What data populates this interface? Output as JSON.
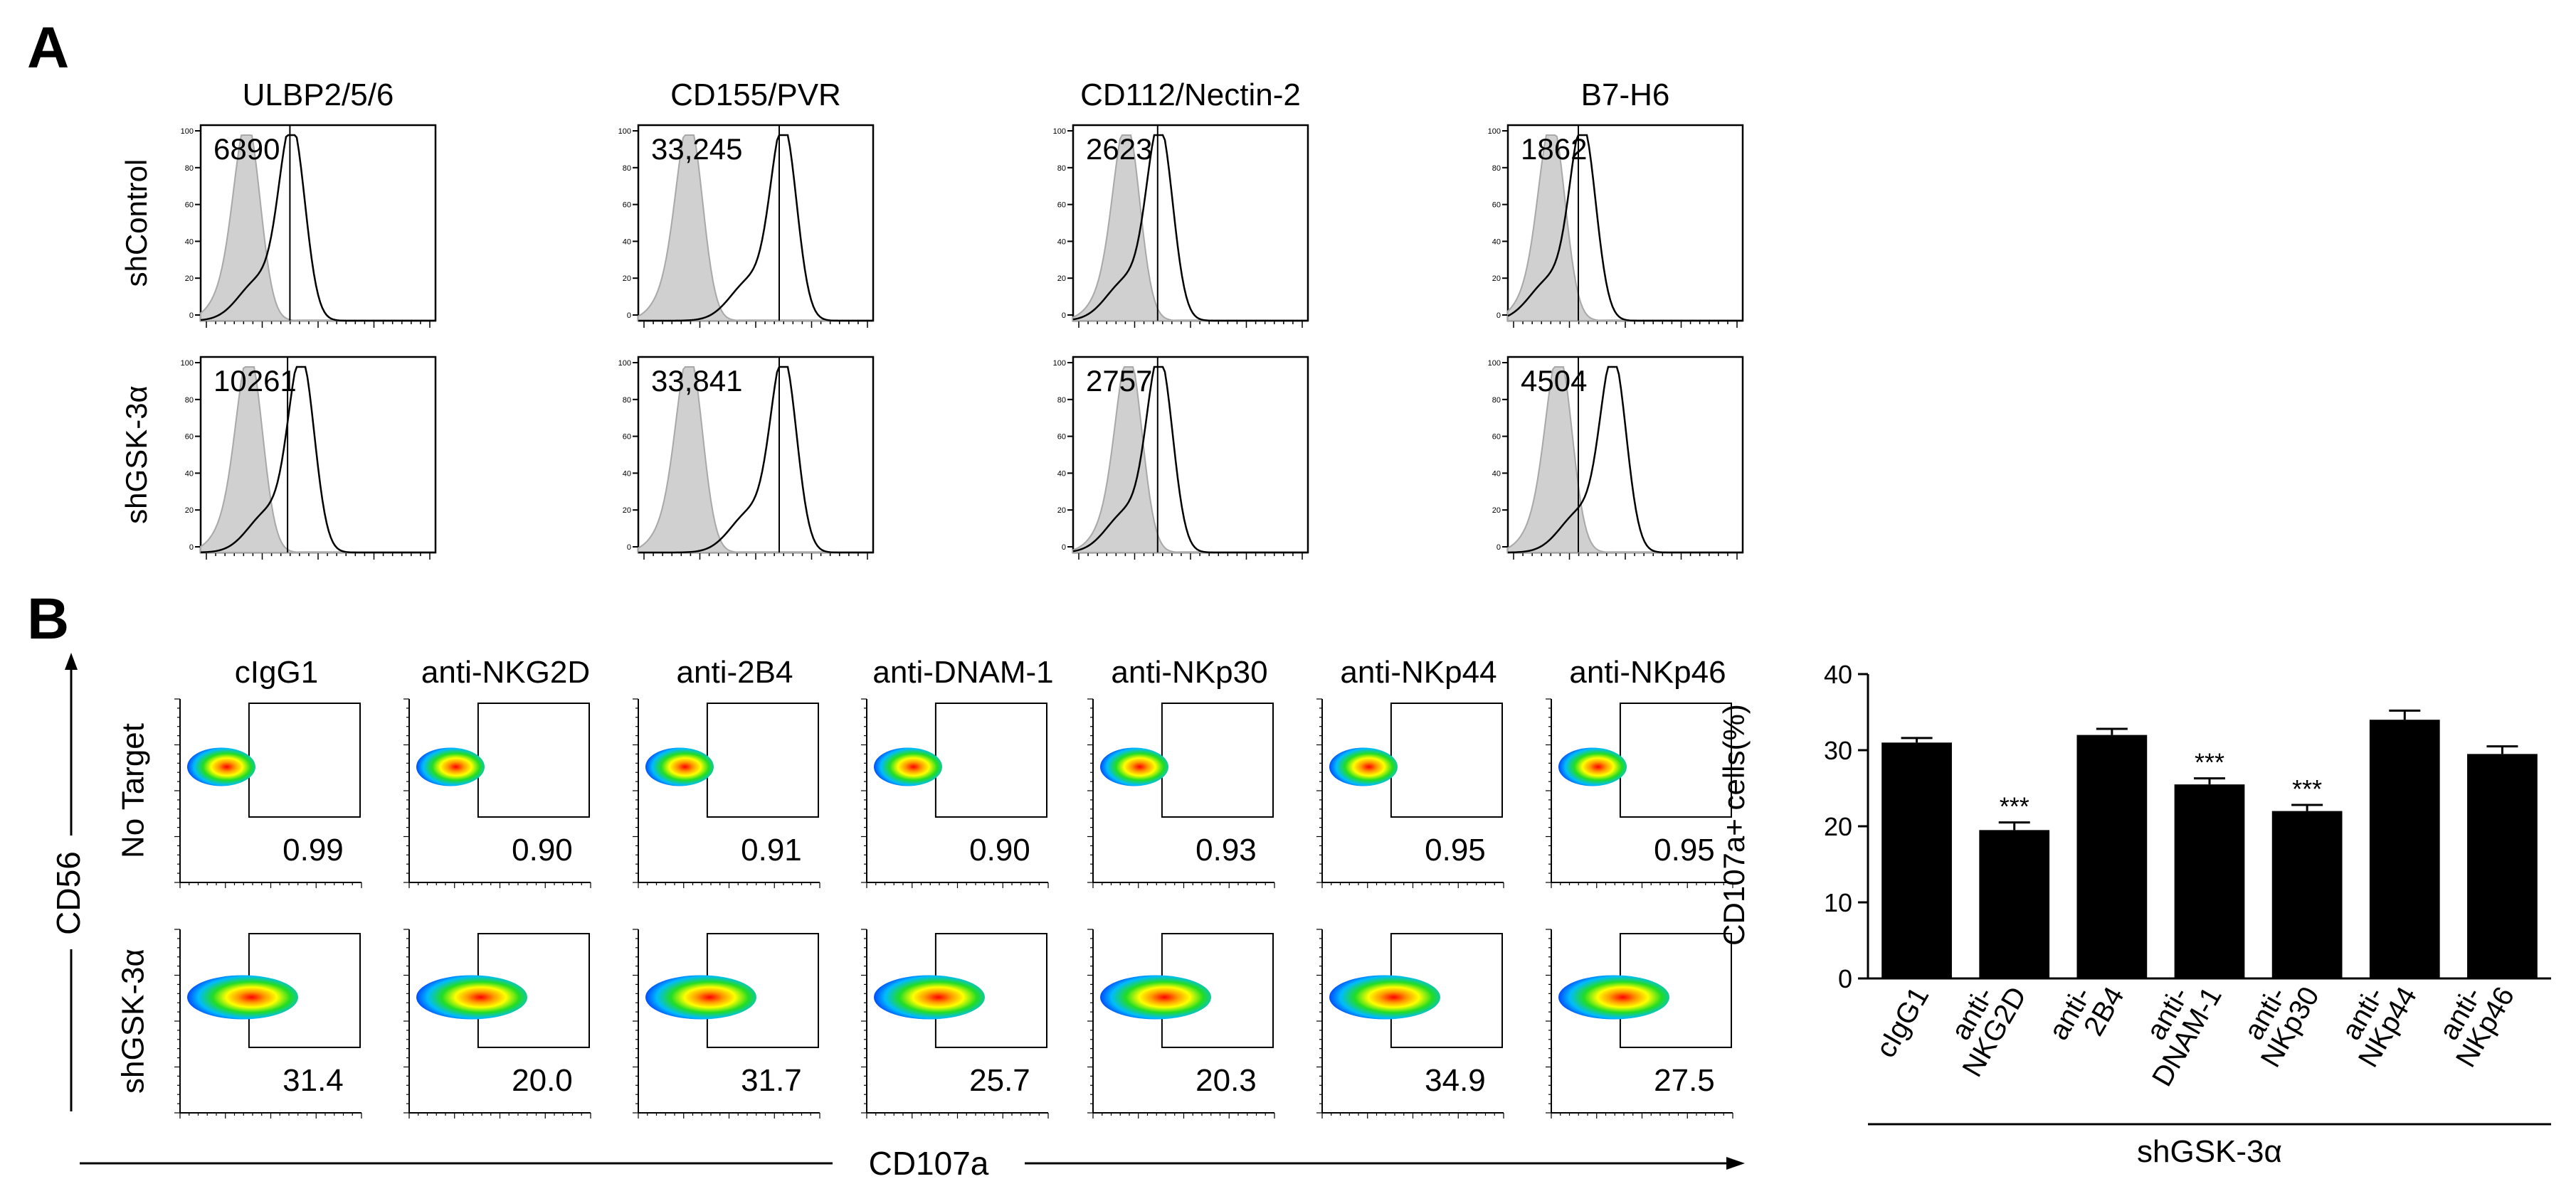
{
  "panel_a": {
    "label": "A",
    "columns": [
      "ULBP2/5/6",
      "CD155/PVR",
      "CD112/Nectin-2",
      "B7-H6"
    ],
    "rows": [
      "shControl",
      "shGSK-3α"
    ],
    "mfi": [
      [
        "6890",
        "33,245",
        "2623",
        "1862"
      ],
      [
        "10261",
        "33,841",
        "2757",
        "4504"
      ]
    ],
    "y_ticks": [
      "100",
      "80",
      "60",
      "40",
      "20",
      "0"
    ]
  },
  "panel_b": {
    "label": "B",
    "columns": [
      "cIgG1",
      "anti-NKG2D",
      "anti-2B4",
      "anti-DNAM-1",
      "anti-NKp30",
      "anti-NKp44",
      "anti-NKp46"
    ],
    "rows": [
      "No Target",
      "shGSK-3α"
    ],
    "gate_values": [
      [
        "0.99",
        "0.90",
        "0.91",
        "0.90",
        "0.93",
        "0.95",
        "0.95"
      ],
      [
        "31.4",
        "20.0",
        "31.7",
        "25.7",
        "20.3",
        "34.9",
        "27.5"
      ]
    ],
    "y_axis_label": "CD56",
    "x_axis_label": "CD107a"
  },
  "chart_data": {
    "type": "bar",
    "categories": [
      "cIgG1",
      "anti-NKG2D",
      "anti-2B4",
      "anti-DNAM-1",
      "anti-NKp30",
      "anti-NKp44",
      "anti-NKp46"
    ],
    "category_labels": [
      [
        "cIgG1"
      ],
      [
        "anti-",
        "NKG2D"
      ],
      [
        "anti-",
        "2B4"
      ],
      [
        "anti-",
        "DNAM-1"
      ],
      [
        "anti-",
        "NKp30"
      ],
      [
        "anti-",
        "NKp44"
      ],
      [
        "anti-",
        "NKp46"
      ]
    ],
    "values": [
      31.0,
      19.5,
      32.0,
      25.5,
      22.0,
      34.0,
      29.5
    ],
    "errors": [
      0.6,
      1.0,
      0.8,
      0.8,
      0.8,
      1.2,
      1.0
    ],
    "significance": [
      "",
      "***",
      "",
      "***",
      "***",
      "",
      ""
    ],
    "ylabel": "CD107a+ cells(%)",
    "group_label": "shGSK-3α",
    "ylim": [
      0,
      40
    ],
    "yticks": [
      0,
      10,
      20,
      30,
      40
    ],
    "bar_color": "#000000"
  }
}
